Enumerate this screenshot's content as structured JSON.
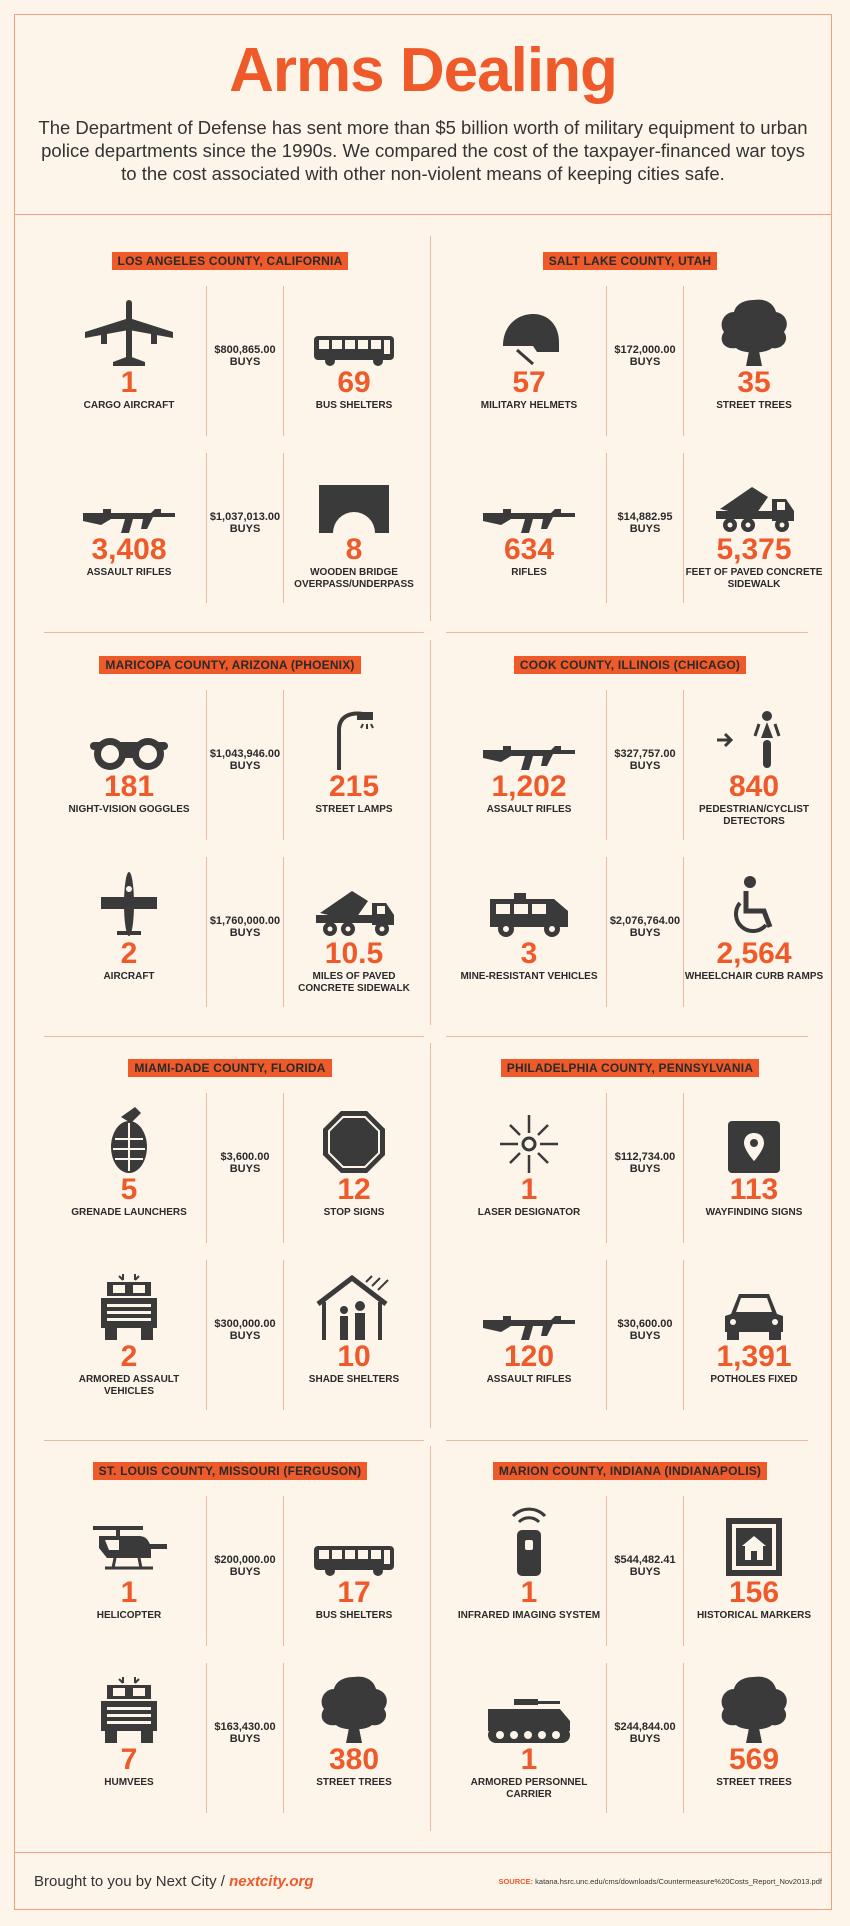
{
  "header": {
    "title": "Arms Dealing",
    "intro": "The Department of Defense has sent more than $5 billion worth of military equipment to urban police departments since the 1990s. We compared the cost of the taxpayer-financed war toys to the cost associated with other non-violent means of keeping cities safe."
  },
  "regions": [
    {
      "name": "LOS ANGELES COUNTY, CALIFORNIA",
      "rows": [
        {
          "left_icon": "cargo-aircraft-icon",
          "left_num": "1",
          "left_label": "CARGO AIRCRAFT",
          "price": "$800,865.00",
          "buys": "BUYS",
          "right_icon": "bus-icon",
          "right_num": "69",
          "right_label": "BUS SHELTERS"
        },
        {
          "left_icon": "rifle-icon",
          "left_num": "3,408",
          "left_label": "ASSAULT RIFLES",
          "price": "$1,037,013.00",
          "buys": "BUYS",
          "right_icon": "bridge-icon",
          "right_num": "8",
          "right_label": "WOODEN BRIDGE OVERPASS/UNDERPASS"
        }
      ]
    },
    {
      "name": "SALT LAKE COUNTY, UTAH",
      "rows": [
        {
          "left_icon": "helmet-icon",
          "left_num": "57",
          "left_label": "MILITARY HELMETS",
          "price": "$172,000.00",
          "buys": "BUYS",
          "right_icon": "tree-icon",
          "right_num": "35",
          "right_label": "STREET TREES"
        },
        {
          "left_icon": "rifle-icon",
          "left_num": "634",
          "left_label": "RIFLES",
          "price": "$14,882.95",
          "buys": "BUYS",
          "right_icon": "cement-mixer-icon",
          "right_num": "5,375",
          "right_label": "FEET OF PAVED CONCRETE SIDEWALK"
        }
      ]
    },
    {
      "name": "MARICOPA COUNTY, ARIZONA (PHOENIX)",
      "rows": [
        {
          "left_icon": "goggles-icon",
          "left_num": "181",
          "left_label": "NIGHT-VISION GOGGLES",
          "price": "$1,043,946.00",
          "buys": "BUYS",
          "right_icon": "street-lamp-icon",
          "right_num": "215",
          "right_label": "STREET LAMPS"
        },
        {
          "left_icon": "aircraft-icon",
          "left_num": "2",
          "left_label": "AIRCRAFT",
          "price": "$1,760,000.00",
          "buys": "BUYS",
          "right_icon": "cement-mixer-icon",
          "right_num": "10.5",
          "right_label": "MILES OF PAVED CONCRETE SIDEWALK"
        }
      ]
    },
    {
      "name": "COOK COUNTY, ILLINOIS (CHICAGO)",
      "rows": [
        {
          "left_icon": "rifle-icon",
          "left_num": "1,202",
          "left_label": "ASSAULT RIFLES",
          "price": "$327,757.00",
          "buys": "BUYS",
          "right_icon": "cyclist-detector-icon",
          "right_num": "840",
          "right_label": "PEDESTRIAN/CYCLIST DETECTORS"
        },
        {
          "left_icon": "mine-resistant-vehicle-icon",
          "left_num": "3",
          "left_label": "MINE-RESISTANT VEHICLES",
          "price": "$2,076,764.00",
          "buys": "BUYS",
          "right_icon": "wheelchair-icon",
          "right_num": "2,564",
          "right_label": "WHEELCHAIR CURB RAMPS"
        }
      ]
    },
    {
      "name": "MIAMI-DADE COUNTY, FLORIDA",
      "rows": [
        {
          "left_icon": "grenade-icon",
          "left_num": "5",
          "left_label": "GRENADE LAUNCHERS",
          "price": "$3,600.00",
          "buys": "BUYS",
          "right_icon": "stop-sign-icon",
          "right_num": "12",
          "right_label": "STOP SIGNS"
        },
        {
          "left_icon": "armored-vehicle-icon",
          "left_num": "2",
          "left_label": "ARMORED ASSAULT VEHICLES",
          "price": "$300,000.00",
          "buys": "BUYS",
          "right_icon": "shade-shelter-icon",
          "right_num": "10",
          "right_label": "SHADE SHELTERS"
        }
      ]
    },
    {
      "name": "PHILADELPHIA COUNTY, PENNSYLVANIA",
      "rows": [
        {
          "left_icon": "laser-icon",
          "left_num": "1",
          "left_label": "LASER DESIGNATOR",
          "price": "$112,734.00",
          "buys": "BUYS",
          "right_icon": "wayfinding-sign-icon",
          "right_num": "113",
          "right_label": "WAYFINDING SIGNS"
        },
        {
          "left_icon": "rifle-icon",
          "left_num": "120",
          "left_label": "ASSAULT RIFLES",
          "price": "$30,600.00",
          "buys": "BUYS",
          "right_icon": "pothole-car-icon",
          "right_num": "1,391",
          "right_label": "POTHOLES FIXED"
        }
      ]
    },
    {
      "name": "ST. LOUIS COUNTY, MISSOURI (FERGUSON)",
      "rows": [
        {
          "left_icon": "helicopter-icon",
          "left_num": "1",
          "left_label": "HELICOPTER",
          "price": "$200,000.00",
          "buys": "BUYS",
          "right_icon": "bus-icon",
          "right_num": "17",
          "right_label": "BUS SHELTERS"
        },
        {
          "left_icon": "armored-vehicle-icon",
          "left_num": "7",
          "left_label": "HUMVEES",
          "price": "$163,430.00",
          "buys": "BUYS",
          "right_icon": "tree-icon",
          "right_num": "380",
          "right_label": "STREET TREES"
        }
      ]
    },
    {
      "name": "MARION COUNTY, INDIANA (INDIANAPOLIS)",
      "rows": [
        {
          "left_icon": "infrared-camera-icon",
          "left_num": "1",
          "left_label": "INFRARED IMAGING SYSTEM",
          "price": "$544,482.41",
          "buys": "BUYS",
          "right_icon": "historical-marker-icon",
          "right_num": "156",
          "right_label": "HISTORICAL MARKERS"
        },
        {
          "left_icon": "apc-icon",
          "left_num": "1",
          "left_label": "ARMORED PERSONNEL CARRIER",
          "price": "$244,844.00",
          "buys": "BUYS",
          "right_icon": "tree-icon",
          "right_num": "569",
          "right_label": "STREET TREES"
        }
      ]
    }
  ],
  "footer": {
    "brought": "Brought to you by Next City /",
    "link": "nextcity.org",
    "source_label": "SOURCE:",
    "source_url": "katana.hsrc.unc.edu/cms/downloads/Countermeasure%20Costs_Report_Nov2013.pdf"
  },
  "colors": {
    "accent": "#ee5a2a",
    "background": "#fdf4ea",
    "icon": "#3a3a3a"
  }
}
